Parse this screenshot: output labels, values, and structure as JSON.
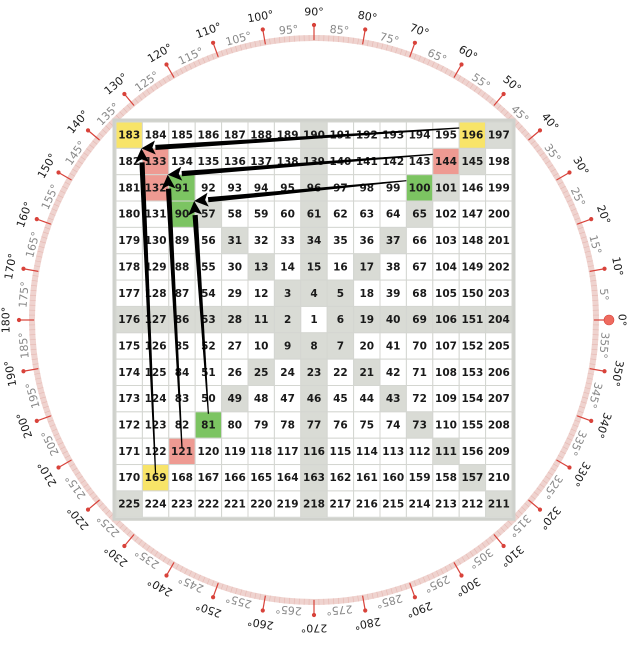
{
  "grid": {
    "rows": [
      [
        183,
        184,
        185,
        186,
        187,
        188,
        189,
        190,
        191,
        192,
        193,
        194,
        195,
        196,
        197
      ],
      [
        182,
        133,
        134,
        135,
        136,
        137,
        138,
        139,
        140,
        141,
        142,
        143,
        144,
        145,
        198
      ],
      [
        181,
        132,
        91,
        92,
        93,
        94,
        95,
        96,
        97,
        98,
        99,
        100,
        101,
        146,
        199
      ],
      [
        180,
        131,
        90,
        57,
        58,
        59,
        60,
        61,
        62,
        63,
        64,
        65,
        102,
        147,
        200
      ],
      [
        179,
        130,
        89,
        56,
        31,
        32,
        33,
        34,
        35,
        36,
        37,
        66,
        103,
        148,
        201
      ],
      [
        178,
        129,
        88,
        55,
        30,
        13,
        14,
        15,
        16,
        17,
        38,
        67,
        104,
        149,
        202
      ],
      [
        177,
        128,
        87,
        54,
        29,
        12,
        3,
        4,
        5,
        18,
        39,
        68,
        105,
        150,
        203
      ],
      [
        176,
        127,
        86,
        53,
        28,
        11,
        2,
        1,
        6,
        19,
        40,
        69,
        106,
        151,
        204
      ],
      [
        175,
        126,
        85,
        52,
        27,
        10,
        9,
        8,
        7,
        20,
        41,
        70,
        107,
        152,
        205
      ],
      [
        174,
        125,
        84,
        51,
        26,
        25,
        24,
        23,
        22,
        21,
        42,
        71,
        108,
        153,
        206
      ],
      [
        173,
        124,
        83,
        50,
        49,
        48,
        47,
        46,
        45,
        44,
        43,
        72,
        109,
        154,
        207
      ],
      [
        172,
        123,
        82,
        81,
        80,
        79,
        78,
        77,
        76,
        75,
        74,
        73,
        110,
        155,
        208
      ],
      [
        171,
        122,
        121,
        120,
        119,
        118,
        117,
        116,
        115,
        114,
        113,
        112,
        111,
        156,
        209
      ],
      [
        170,
        169,
        168,
        167,
        166,
        165,
        164,
        163,
        162,
        161,
        160,
        159,
        158,
        157,
        210
      ],
      [
        225,
        224,
        223,
        222,
        221,
        220,
        219,
        218,
        217,
        216,
        215,
        214,
        213,
        212,
        211
      ]
    ],
    "highlights": {
      "yellow": [
        183,
        196,
        169
      ],
      "red": [
        133,
        132,
        144,
        121
      ],
      "green": [
        91,
        90,
        100,
        81
      ]
    },
    "shaded": "diagonals and center row/column"
  },
  "arrows": [
    {
      "from": 196,
      "to": 133,
      "direction": "left"
    },
    {
      "from": 144,
      "to": 91,
      "direction": "left"
    },
    {
      "from": 100,
      "to": 57,
      "direction": "left"
    },
    {
      "from": 169,
      "to": 133,
      "direction": "up"
    },
    {
      "from": 121,
      "to": 91,
      "direction": "up"
    },
    {
      "from": 81,
      "to": 57,
      "direction": "up"
    }
  ],
  "protractor": {
    "major_labels": [
      "0°",
      "10°",
      "20°",
      "30°",
      "40°",
      "50°",
      "60°",
      "70°",
      "80°",
      "90°",
      "100°",
      "110°",
      "120°",
      "130°",
      "140°",
      "150°",
      "160°",
      "170°",
      "180°",
      "190°",
      "200°",
      "210°",
      "220°",
      "230°",
      "240°",
      "250°",
      "260°",
      "270°",
      "280°",
      "290°",
      "300°",
      "310°",
      "320°",
      "330°",
      "340°",
      "350°"
    ],
    "minor_labels": [
      "5°",
      "15°",
      "25°",
      "35°",
      "45°",
      "55°",
      "65°",
      "75°",
      "85°",
      "95°",
      "105°",
      "115°",
      "125°",
      "135°",
      "145°",
      "155°",
      "165°",
      "175°",
      "185°",
      "195°",
      "205°",
      "215°",
      "225°",
      "235°",
      "245°",
      "255°",
      "265°",
      "275°",
      "285°",
      "295°",
      "305°",
      "315°",
      "325°",
      "335°",
      "345°",
      "355°"
    ]
  },
  "colors": {
    "yellow": "#f8e468",
    "red": "#ee9a92",
    "green": "#7cc462",
    "shaded": "#d9dbd5",
    "border": "#cfd1cc",
    "tick": "#d8423a",
    "band": "#efd3cf",
    "major_text": "#1a1a1a",
    "minor_text": "#888888",
    "arrow": "#000000"
  }
}
